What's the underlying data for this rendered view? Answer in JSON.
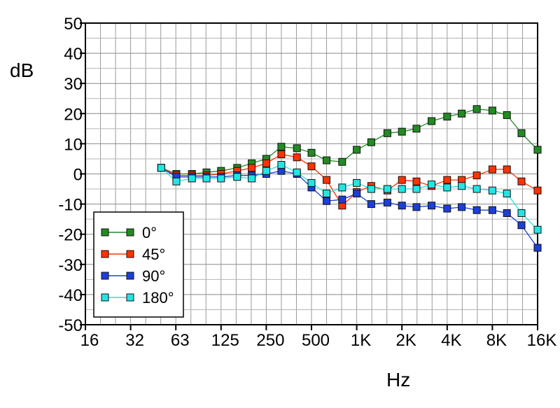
{
  "chart_data": {
    "type": "line",
    "ylabel": "dB",
    "xlabel": "Hz",
    "ylim": [
      -50,
      50
    ],
    "y_ticks": [
      "50",
      "40",
      "30",
      "20",
      "10",
      "0",
      "-10",
      "-20",
      "-30",
      "-40",
      "-50"
    ],
    "x_tick_labels": [
      "16",
      "32",
      "63",
      "125",
      "250",
      "500",
      "1K",
      "2K",
      "4K",
      "8K",
      "16K"
    ],
    "x_scale": "log",
    "grid": true,
    "legend_position": "bottom-left",
    "x": [
      50,
      63,
      80,
      100,
      125,
      160,
      200,
      250,
      315,
      400,
      500,
      630,
      800,
      1000,
      1250,
      1600,
      2000,
      2500,
      3150,
      4000,
      5000,
      6300,
      8000,
      10000,
      12500,
      16000
    ],
    "series": [
      {
        "name": "0°",
        "color": "#228b22",
        "values": [
          2,
          0,
          0,
          0.5,
          1,
          2,
          3.5,
          5,
          9,
          8.5,
          7,
          4.5,
          4,
          8,
          10.5,
          13.5,
          14,
          15,
          17.5,
          19,
          20,
          21.5,
          21,
          19.5,
          13.5,
          8
        ]
      },
      {
        "name": "45°",
        "color": "#ff3300",
        "values": [
          2,
          -0.5,
          -0.5,
          -0.5,
          0,
          1,
          2,
          3.5,
          6.5,
          5.5,
          2.5,
          -2,
          -10.5,
          -6,
          -4,
          -5.5,
          -2,
          -2.5,
          -4,
          -2,
          -2,
          -0.5,
          1.5,
          1.5,
          -2.5,
          -5.5
        ]
      },
      {
        "name": "90°",
        "color": "#1b3fd8",
        "values": [
          2,
          -1,
          -1,
          -1,
          -1,
          -0.5,
          -0.5,
          0,
          1,
          0,
          -4.5,
          -9,
          -8.5,
          -6.5,
          -10,
          -9.5,
          -10.5,
          -11,
          -10.5,
          -11.5,
          -11,
          -12,
          -12,
          -13,
          -17,
          -24.5
        ]
      },
      {
        "name": "180°",
        "color": "#22e5e5",
        "values": [
          2,
          -2.5,
          -1.5,
          -1.5,
          -1.5,
          -1,
          -1.5,
          1,
          3,
          0.5,
          -3,
          -6.5,
          -4.5,
          -3,
          -5,
          -5,
          -5,
          -5,
          -3.5,
          -4.5,
          -4,
          -5,
          -5.5,
          -6.5,
          -13,
          -18.5
        ]
      }
    ]
  }
}
